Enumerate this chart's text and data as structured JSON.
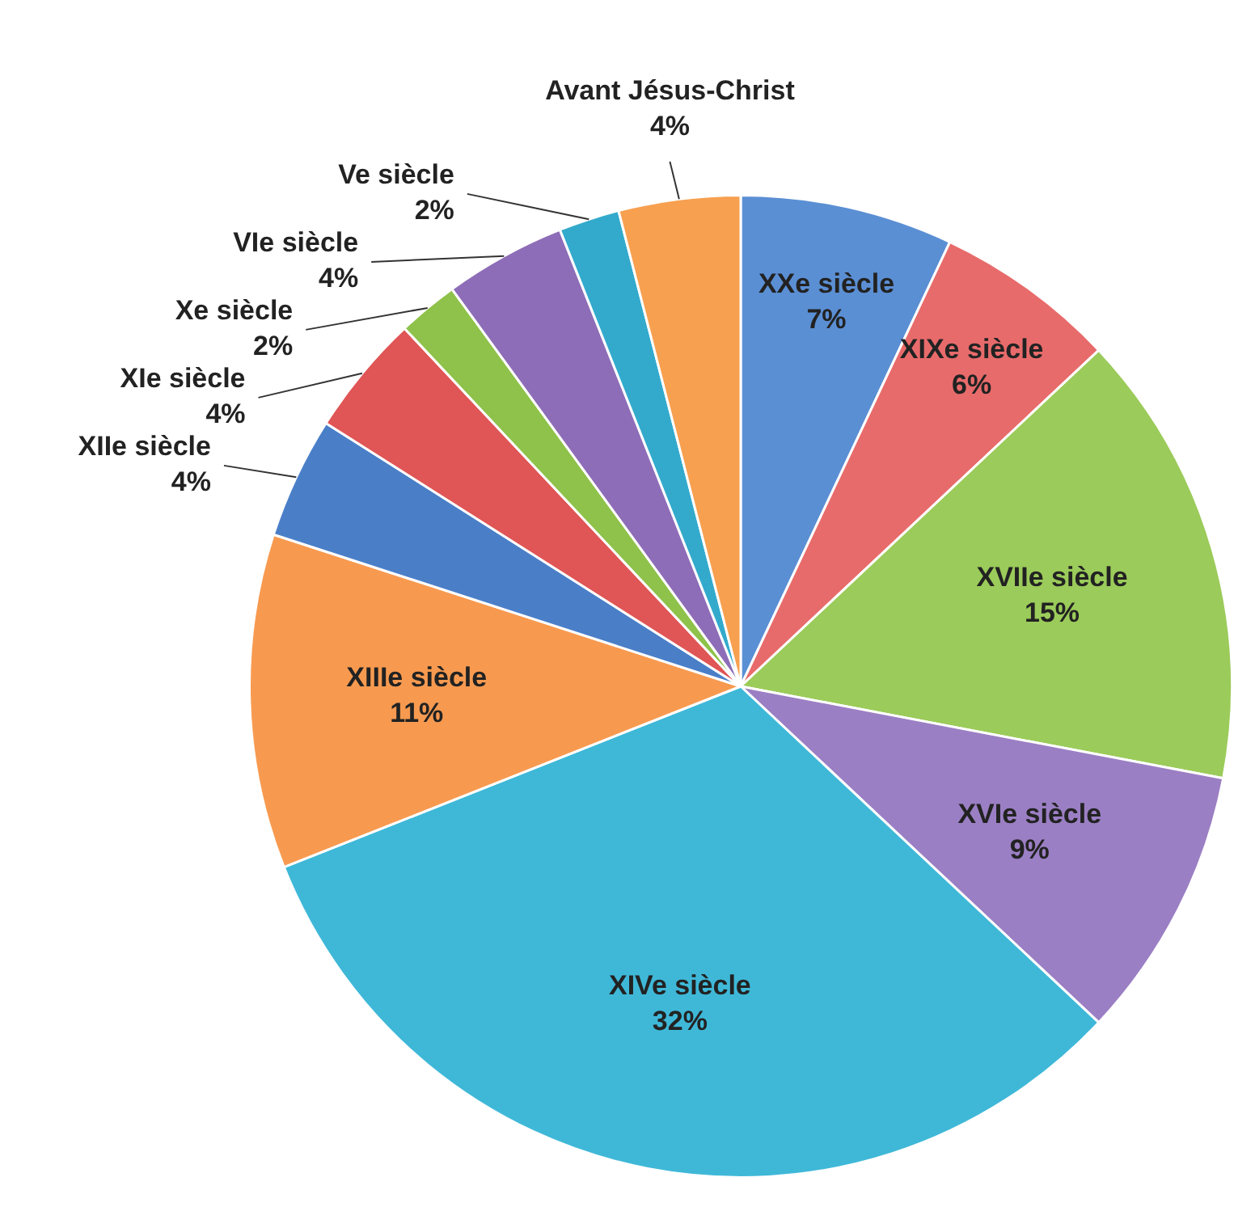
{
  "chart_data": {
    "type": "pie",
    "categories": [
      "XXe siècle",
      "XIXe siècle",
      "XVIIe siècle",
      "XVIe siècle",
      "XIVe siècle",
      "XIIIe siècle",
      "XIIe siècle",
      "XIe siècle",
      "Xe siècle",
      "VIe siècle",
      "Ve siècle",
      "Avant Jésus-Christ"
    ],
    "values": [
      7,
      6,
      15,
      9,
      32,
      11,
      4,
      4,
      2,
      4,
      2,
      4
    ],
    "value_labels": [
      "7%",
      "6%",
      "15%",
      "9%",
      "32%",
      "11%",
      "4%",
      "4%",
      "2%",
      "4%",
      "2%",
      "4%"
    ],
    "colors": [
      "#5b8fd4",
      "#e86b6b",
      "#9bcb5a",
      "#9b7fc4",
      "#3fb8d8",
      "#f79a50",
      "#4a7fc8",
      "#e05555",
      "#8ec24a",
      "#8e6db8",
      "#33aacc",
      "#f7a050"
    ],
    "legend": false
  }
}
